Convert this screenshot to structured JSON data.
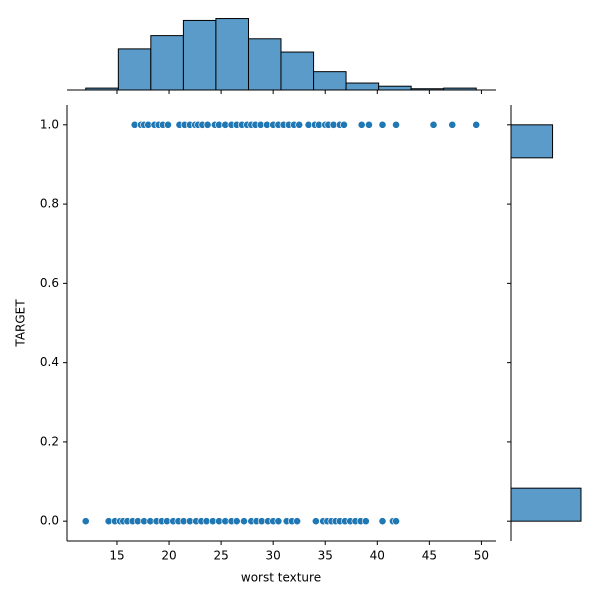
{
  "chart_data": [
    {
      "type": "scatter",
      "xlabel": "worst texture",
      "ylabel": "TARGET",
      "color": "#1f77b4",
      "x": [
        16.7,
        17.3,
        17.6,
        18,
        18.6,
        19,
        19.4,
        19.9,
        21,
        21.5,
        22,
        22.5,
        22.8,
        23.2,
        23.7,
        24.4,
        24.8,
        25.4,
        26,
        26.5,
        27,
        27.5,
        27.9,
        28.3,
        28.8,
        29.4,
        30,
        30.5,
        31,
        31.5,
        32,
        32.5,
        33.4,
        34,
        34.4,
        35,
        35.3,
        35.8,
        36.4,
        36.8,
        38.5,
        39.2,
        40.5,
        41.8,
        45.4,
        47.2,
        49.5,
        12,
        14.2,
        14.8,
        15.3,
        15.6,
        16,
        16.5,
        17,
        17.6,
        18.2,
        18.8,
        19.3,
        19.8,
        20.4,
        20.9,
        21.4,
        22,
        22.6,
        23.1,
        23.6,
        24.2,
        24.8,
        25.4,
        26,
        26.5,
        27.2,
        27.9,
        28.4,
        28.9,
        29.5,
        30,
        30.5,
        31.3,
        31.8,
        32.3,
        34.1,
        34.8,
        35.2,
        35.6,
        36,
        36.4,
        36.9,
        37.4,
        37.9,
        38.4,
        38.9,
        40.5,
        41.5,
        41.8
      ],
      "values": [
        1,
        1,
        1,
        1,
        1,
        1,
        1,
        1,
        1,
        1,
        1,
        1,
        1,
        1,
        1,
        1,
        1,
        1,
        1,
        1,
        1,
        1,
        1,
        1,
        1,
        1,
        1,
        1,
        1,
        1,
        1,
        1,
        1,
        1,
        1,
        1,
        1,
        1,
        1,
        1,
        1,
        1,
        1,
        1,
        1,
        1,
        1,
        0,
        0,
        0,
        0,
        0,
        0,
        0,
        0,
        0,
        0,
        0,
        0,
        0,
        0,
        0,
        0,
        0,
        0,
        0,
        0,
        0,
        0,
        0,
        0,
        0,
        0,
        0,
        0,
        0,
        0,
        0,
        0,
        0,
        0,
        0,
        0,
        0,
        0,
        0,
        0,
        0,
        0,
        0,
        0,
        0,
        0,
        0,
        0,
        0
      ],
      "xlim": [
        10.2,
        51.4
      ],
      "xticks": [
        15,
        20,
        25,
        30,
        35,
        40,
        45,
        50
      ],
      "ylim": [
        -0.05,
        1.05
      ],
      "yticks": [
        {
          "value": 0,
          "label": "0.0"
        },
        {
          "value": 0.2,
          "label": "0.2"
        },
        {
          "value": 0.4,
          "label": "0.4"
        },
        {
          "value": 0.6,
          "label": "0.6"
        },
        {
          "value": 0.8,
          "label": "0.8"
        },
        {
          "value": 1,
          "label": "1.0"
        }
      ]
    },
    {
      "type": "histogram",
      "orientation": "vertical",
      "color": "#5a9bc9",
      "bins": [
        12,
        15.13,
        18.25,
        21.38,
        24.5,
        27.63,
        30.75,
        33.88,
        37,
        40.13,
        43.25,
        46.38,
        49.5
      ],
      "values": [
        3,
        65,
        86,
        110,
        113,
        81,
        60,
        29,
        11,
        6,
        2,
        3
      ],
      "ylim": [
        0,
        118.6
      ]
    },
    {
      "type": "histogram",
      "orientation": "horizontal",
      "color": "#5a9bc9",
      "bins": [
        0,
        0.0833,
        0.1667,
        0.25,
        0.3333,
        0.4167,
        0.5,
        0.5833,
        0.6667,
        0.75,
        0.8333,
        0.9167,
        1
      ],
      "values": [
        357,
        0,
        0,
        0,
        0,
        0,
        0,
        0,
        0,
        0,
        0,
        212
      ],
      "xlim": [
        0,
        403
      ]
    }
  ]
}
